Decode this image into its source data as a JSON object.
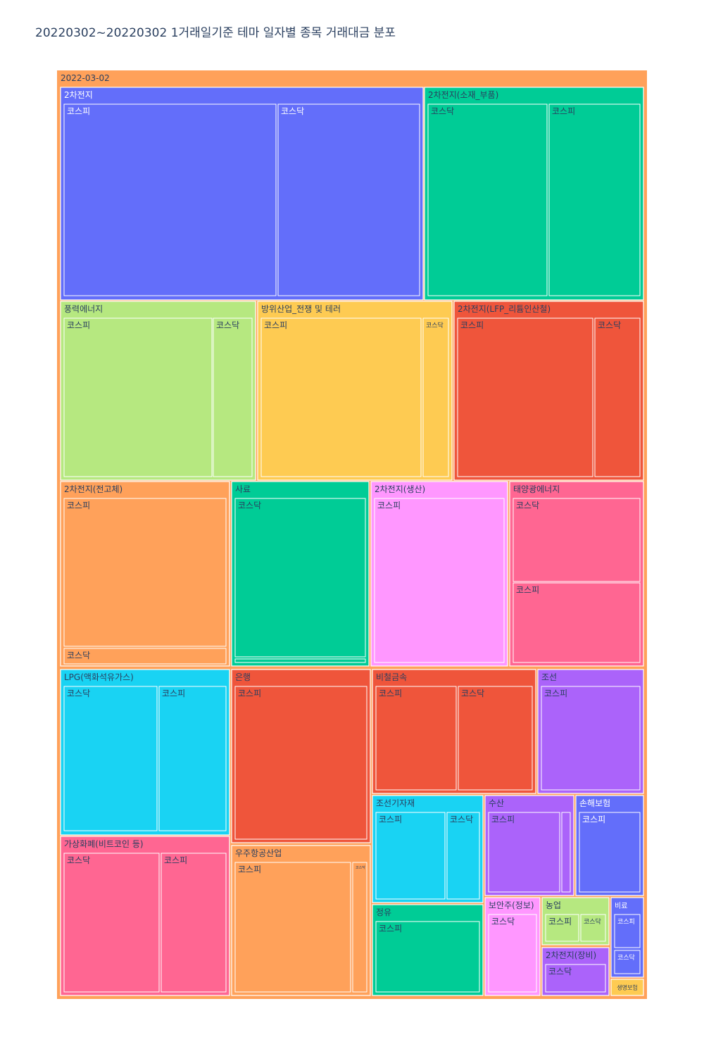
{
  "chart_data": {
    "type": "treemap",
    "title": "20220302~20220302 1거래일기준 테마 일자별 종목 거래대금 분포",
    "root": {
      "label": "2022-03-02",
      "color": "#FFA15A",
      "children": [
        {
          "label": "2차전지",
          "color": "#636EFA",
          "children": [
            {
              "label": "코스피",
              "value": 305
            },
            {
              "label": "코스닥",
              "value": 200
            }
          ]
        },
        {
          "label": "2차전지(소재_부품)",
          "color": "#00CC96",
          "children": [
            {
              "label": "코스닥",
              "value": 167
            },
            {
              "label": "코스피",
              "value": 130
            }
          ]
        },
        {
          "label": "풍력에너지",
          "color": "#B6E880",
          "children": [
            {
              "label": "코스피",
              "value": 210
            },
            {
              "label": "코스닥",
              "value": 55
            }
          ]
        },
        {
          "label": "방위산업_전쟁 및 테러",
          "color": "#FECB52",
          "children": [
            {
              "label": "코스피",
              "value": 228
            },
            {
              "label": "코스닥",
              "value": 37
            }
          ]
        },
        {
          "label": "2차전지(LFP_리튬인산철)",
          "color": "#EF553B",
          "children": [
            {
              "label": "코스피",
              "value": 192
            },
            {
              "label": "코스닥",
              "value": 67
            }
          ]
        },
        {
          "label": "2차전지(전고체)",
          "color": "#FFA15A",
          "children": [
            {
              "label": "코스피",
              "value": 212
            },
            {
              "label": "코스닥",
              "value": 26
            }
          ]
        },
        {
          "label": "사료",
          "color": "#00CC96",
          "children": [
            {
              "label": "코스닥",
              "value": 227
            },
            {
              "label": "",
              "value": 6
            }
          ]
        },
        {
          "label": "2차전지(생산)",
          "color": "#FF97FF",
          "children": [
            {
              "label": "코스피",
              "value": 215
            }
          ]
        },
        {
          "label": "태양광에너지",
          "color": "#FF6692",
          "children": [
            {
              "label": "코스닥",
              "value": 120
            },
            {
              "label": "코스피",
              "value": 114
            }
          ]
        },
        {
          "label": "LPG(액화석유가스)",
          "color": "#19D3F3",
          "children": [
            {
              "label": "코스닥",
              "value": 126
            },
            {
              "label": "코스피",
              "value": 92
            }
          ]
        },
        {
          "label": "가상화폐(비트코인 등)",
          "color": "#FF6692",
          "children": [
            {
              "label": "코스닥",
              "value": 130
            },
            {
              "label": "코스피",
              "value": 91
            }
          ]
        },
        {
          "label": "은행",
          "color": "#EF553B",
          "children": [
            {
              "label": "코스피",
              "value": 212
            }
          ]
        },
        {
          "label": "우주항공산업",
          "color": "#FFA15A",
          "children": [
            {
              "label": "코스피",
              "value": 161
            },
            {
              "label": "코스닥",
              "value": 18
            }
          ]
        },
        {
          "label": "비철금속",
          "color": "#EF553B",
          "children": [
            {
              "label": "코스피",
              "value": 90
            },
            {
              "label": "코스닥",
              "value": 84
            }
          ]
        },
        {
          "label": "조선",
          "color": "#AB63FA",
          "children": [
            {
              "label": "코스피",
              "value": 120
            }
          ]
        },
        {
          "label": "조선기자재",
          "color": "#19D3F3",
          "children": [
            {
              "label": "코스피",
              "value": 66
            },
            {
              "label": "코스닥",
              "value": 32
            }
          ]
        },
        {
          "label": "정유",
          "color": "#00CC96",
          "children": [
            {
              "label": "코스피",
              "value": 88
            }
          ]
        },
        {
          "label": "수산",
          "color": "#AB63FA",
          "children": [
            {
              "label": "코스피",
              "value": 60
            },
            {
              "label": "",
              "value": 9
            }
          ]
        },
        {
          "label": "손해보험",
          "color": "#636EFA",
          "children": [
            {
              "label": "코스피",
              "value": 65
            }
          ]
        },
        {
          "label": "보안주(정보)",
          "color": "#FF97FF",
          "children": [
            {
              "label": "코스닥",
              "value": 50
            }
          ]
        },
        {
          "label": "농업",
          "color": "#B6E880",
          "children": [
            {
              "label": "코스피",
              "value": 16
            },
            {
              "label": "코스닥",
              "value": 14
            }
          ]
        },
        {
          "label": "2차전지(장비)",
          "color": "#AB63FA",
          "children": [
            {
              "label": "코스닥",
              "value": 25
            }
          ]
        },
        {
          "label": "비료",
          "color": "#636EFA",
          "children": [
            {
              "label": "코스피",
              "value": 13
            },
            {
              "label": "코스닥",
              "value": 9
            }
          ]
        },
        {
          "label": "생명보험",
          "color": "#FECB52",
          "value": 5
        }
      ]
    }
  }
}
